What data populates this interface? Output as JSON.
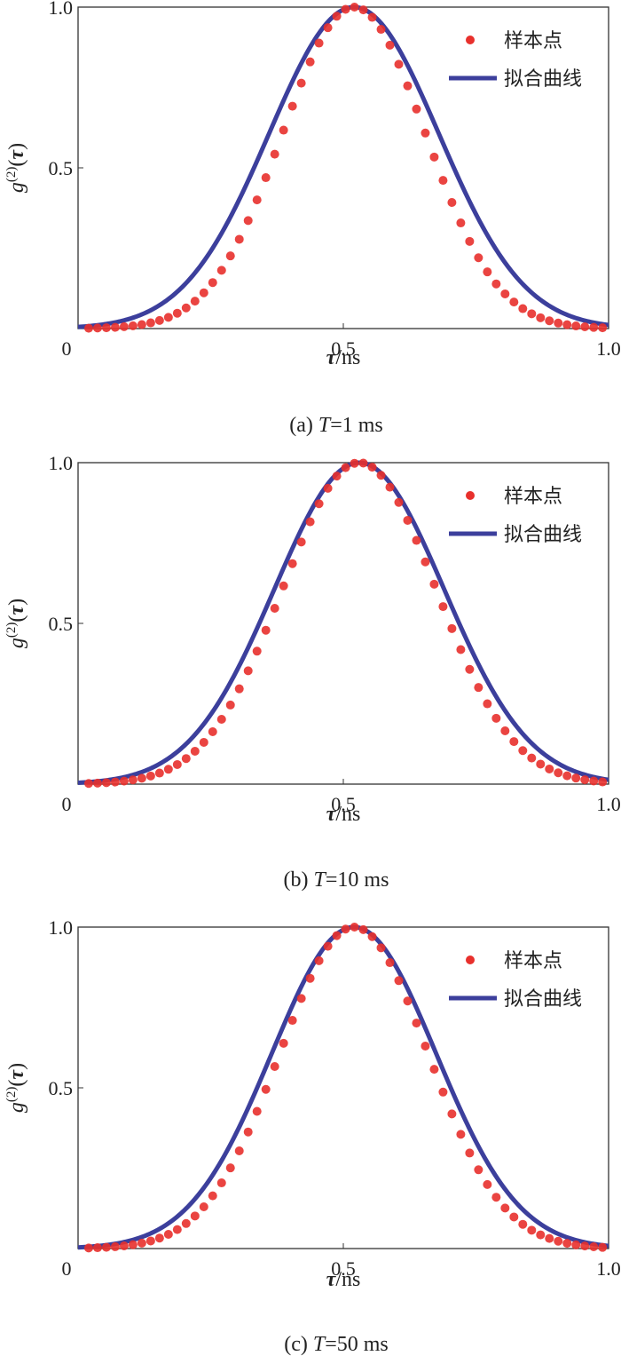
{
  "colors": {
    "points": "#e8302c",
    "curve": "#3c3f9c",
    "text": "#222222"
  },
  "legend_labels": {
    "points": "样本点",
    "curve": "拟合曲线"
  },
  "chart_data": [
    {
      "type": "scatter",
      "caption": "(a) T=1 ms",
      "caption_prefix": "(a) ",
      "caption_T": "T",
      "caption_value": "=1 ms",
      "xlabel": "τ/ns",
      "xlabel_sym": "τ",
      "xlabel_unit": "/ns",
      "ylabel": "g(2)(τ)",
      "xlim": [
        0,
        1.0
      ],
      "ylim": [
        0,
        1.0
      ],
      "x_ticks": [
        "0",
        "0.5",
        "1.0"
      ],
      "y_ticks": [
        "0.5",
        "1.0"
      ],
      "legend_position": "top-right",
      "fit": {
        "name": "拟合曲线",
        "form": "gaussian",
        "center": 0.52,
        "sigma": 0.16
      },
      "samples": {
        "name": "样本点",
        "form": "gaussian",
        "center": 0.52,
        "sigma": 0.135,
        "x_start": 0.02,
        "x_step": 0.0167,
        "count": 60
      }
    },
    {
      "type": "scatter",
      "caption": "(b) T=10 ms",
      "caption_prefix": "(b) ",
      "caption_T": "T",
      "caption_value": "=10 ms",
      "xlabel": "τ/ns",
      "xlabel_sym": "τ",
      "xlabel_unit": "/ns",
      "ylabel": "g(2)(τ)",
      "xlim": [
        0,
        1.0
      ],
      "ylim": [
        0,
        1.0
      ],
      "x_ticks": [
        "0",
        "0.5",
        "1.0"
      ],
      "y_ticks": [
        "0.5",
        "1.0"
      ],
      "legend_position": "top-right",
      "fit": {
        "name": "拟合曲线",
        "form": "gaussian",
        "center": 0.53,
        "sigma": 0.16
      },
      "samples": {
        "name": "样本点",
        "form": "gaussian",
        "center": 0.53,
        "sigma": 0.145,
        "x_start": 0.02,
        "x_step": 0.0167,
        "count": 60
      }
    },
    {
      "type": "scatter",
      "caption": "(c) T=50 ms",
      "caption_prefix": "(c) ",
      "caption_T": "T",
      "caption_value": "=50 ms",
      "xlabel": "τ/ns",
      "xlabel_sym": "τ",
      "xlabel_unit": "/ns",
      "ylabel": "g(2)(τ)",
      "xlim": [
        0,
        1.0
      ],
      "ylim": [
        0,
        1.0
      ],
      "x_ticks": [
        "0",
        "0.5",
        "1.0"
      ],
      "y_ticks": [
        "0.5",
        "1.0"
      ],
      "legend_position": "top-right",
      "fit": {
        "name": "拟合曲线",
        "form": "gaussian",
        "center": 0.52,
        "sigma": 0.155
      },
      "samples": {
        "name": "样本点",
        "form": "gaussian",
        "center": 0.52,
        "sigma": 0.14,
        "x_start": 0.02,
        "x_step": 0.0167,
        "count": 60
      }
    }
  ]
}
